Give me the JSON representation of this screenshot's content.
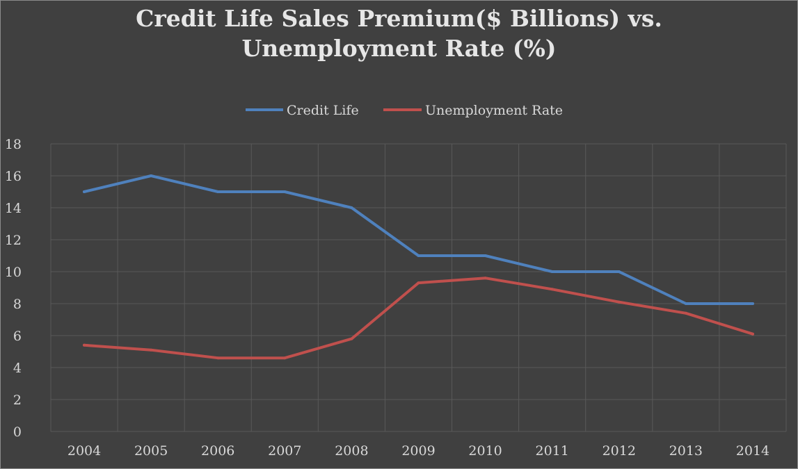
{
  "chart_data": {
    "type": "line",
    "title": "Credit Life Sales Premium($ Billions) vs. Unemployment Rate (%)",
    "title_lines": [
      "Credit Life Sales Premium($ Billions) vs.",
      "Unemployment Rate (%)"
    ],
    "categories": [
      "2004",
      "2005",
      "2006",
      "2007",
      "2008",
      "2009",
      "2010",
      "2011",
      "2012",
      "2013",
      "2014"
    ],
    "series": [
      {
        "name": "Credit Life",
        "color": "#4f81bd",
        "values": [
          15,
          16,
          15,
          15,
          14,
          11,
          11,
          10,
          10,
          8,
          8
        ]
      },
      {
        "name": "Unemployment Rate",
        "color": "#c0504d",
        "values": [
          5.4,
          5.1,
          4.6,
          4.6,
          5.8,
          9.3,
          9.6,
          8.9,
          8.1,
          7.4,
          6.1
        ]
      }
    ],
    "ylim": [
      0,
      18
    ],
    "yticks": [
      0,
      2,
      4,
      6,
      8,
      10,
      12,
      14,
      16,
      18
    ],
    "xlabel": "",
    "ylabel": "",
    "grid": true,
    "legend_position": "top",
    "background_color": "#404040",
    "gridline_color": "#595959",
    "text_color": "#d9d9d9"
  }
}
